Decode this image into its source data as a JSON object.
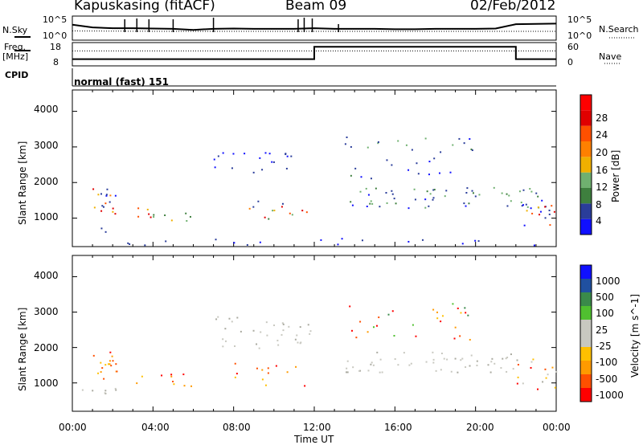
{
  "header": {
    "radar": "Kapuskasing (fitACF)",
    "beam": "Beam 09",
    "date": "02/Feb/2012"
  },
  "sky_panel": {
    "label": "N.Sky",
    "left_ticks": [
      "10^5",
      "10^0"
    ],
    "right_ticks": [
      "10^5",
      "10^0"
    ],
    "right_label": "N.Search"
  },
  "freq_panel": {
    "label_line1": "Freq.",
    "label_line2": "[MHz]",
    "left_ticks": [
      "18",
      "8"
    ],
    "right_ticks": [
      "60",
      "0"
    ],
    "right_label": "Nave",
    "cpid_label": "CPID",
    "mode_text": "normal (fast) 151"
  },
  "colors": {
    "power": [
      "#1010ff",
      "#2a3d9a",
      "#3e7f3e",
      "#6fb06f",
      "#f0b000",
      "#ff8000",
      "#ff5000",
      "#e00000",
      "#ff0000"
    ],
    "velocity": [
      "#ff0000",
      "#ff5000",
      "#ff9a00",
      "#ffc000",
      "#c8c8c0",
      "#c8c8c0",
      "#50c030",
      "#3a8a4a",
      "#2050a0",
      "#1010ff"
    ]
  },
  "chart_data": [
    {
      "type": "line",
      "title": "N.Sky / N.Search",
      "x_range": [
        "00:00",
        "24:00"
      ],
      "ylim_left": [
        1,
        100000
      ],
      "ylim_right": [
        1,
        100000
      ],
      "log_scale": true,
      "series": [
        {
          "name": "N.Sky",
          "style": "solid",
          "x": [
            0,
            1,
            2,
            3,
            4,
            5,
            6,
            7,
            8,
            9,
            10,
            11,
            12,
            13,
            14,
            15,
            16,
            17,
            18,
            19,
            20,
            21,
            22,
            23,
            24
          ],
          "values": [
            3000,
            500,
            300,
            300,
            250,
            200,
            100,
            200,
            250,
            200,
            200,
            200,
            300,
            200,
            200,
            200,
            150,
            150,
            200,
            200,
            200,
            250,
            4000,
            5000,
            6000
          ]
        },
        {
          "name": "N.Search",
          "style": "dotted",
          "x": [
            0,
            4,
            8,
            12,
            16,
            20,
            24
          ],
          "values": [
            50,
            40,
            40,
            40,
            40,
            40,
            40
          ]
        }
      ]
    },
    {
      "type": "line",
      "title": "Freq / Nave",
      "x_range": [
        "00:00",
        "24:00"
      ],
      "ylim_left": [
        8,
        18
      ],
      "ylim_right": [
        0,
        60
      ],
      "series": [
        {
          "name": "Freq",
          "style": "solid",
          "x": [
            0,
            12,
            12,
            22,
            22,
            24
          ],
          "values": [
            10,
            10,
            17,
            17,
            10,
            10
          ]
        },
        {
          "name": "Nave",
          "style": "dotted",
          "x": [
            0,
            24
          ],
          "values": [
            40,
            40
          ]
        }
      ]
    },
    {
      "type": "heatmap",
      "quantity": "Power",
      "ylabel": "Slant Range [km]",
      "y_ticks": [
        1000,
        2000,
        3000,
        4000
      ],
      "ylim": [
        200,
        4600
      ],
      "colorbar_label": "Power [dB]",
      "colorbar_ticks": [
        "4",
        "8",
        "12",
        "16",
        "20",
        "24",
        "28"
      ],
      "clim": [
        0,
        30
      ]
    },
    {
      "type": "heatmap",
      "quantity": "Velocity",
      "ylabel": "Slant Range [km]",
      "y_ticks": [
        1000,
        2000,
        3000,
        4000
      ],
      "ylim": [
        200,
        4600
      ],
      "colorbar_label": "Velocity [m s^-1]",
      "colorbar_ticks": [
        "1000",
        "500",
        "100",
        "25",
        "-25",
        "-100",
        "-500",
        "-1000"
      ]
    }
  ],
  "time_axis": {
    "ticks": [
      "00:00",
      "04:00",
      "08:00",
      "12:00",
      "16:00",
      "20:00",
      "00:00"
    ],
    "label": "Time UT"
  }
}
